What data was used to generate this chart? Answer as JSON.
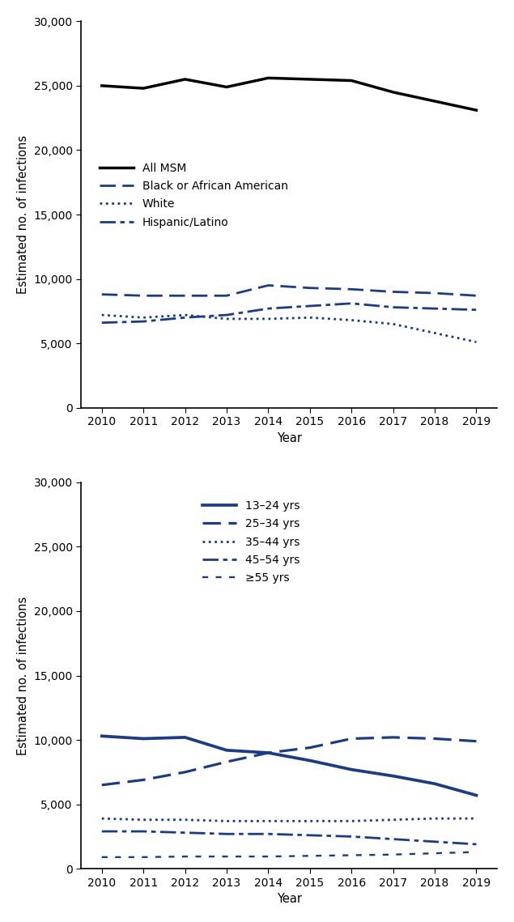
{
  "years": [
    2010,
    2011,
    2012,
    2013,
    2014,
    2015,
    2016,
    2017,
    2018,
    2019
  ],
  "panel1": {
    "all_msm": [
      25000,
      24800,
      25500,
      24900,
      25600,
      25500,
      25400,
      24500,
      23800,
      23100
    ],
    "black": [
      8800,
      8700,
      8700,
      8700,
      9500,
      9300,
      9200,
      9000,
      8900,
      8700
    ],
    "white": [
      7200,
      7000,
      7200,
      6900,
      6900,
      7000,
      6800,
      6500,
      5800,
      5100
    ],
    "hispanic": [
      6600,
      6700,
      7000,
      7200,
      7700,
      7900,
      8100,
      7800,
      7700,
      7600
    ],
    "legend_labels": [
      "All MSM",
      "Black or African American",
      "White",
      "Hispanic/Latino"
    ]
  },
  "panel2": {
    "age_13_24": [
      10300,
      10100,
      10200,
      9200,
      9000,
      8400,
      7700,
      7200,
      6600,
      5700
    ],
    "age_25_34": [
      6500,
      6900,
      7500,
      8300,
      9000,
      9400,
      10100,
      10200,
      10100,
      9900
    ],
    "age_35_44": [
      3900,
      3800,
      3800,
      3700,
      3700,
      3700,
      3700,
      3800,
      3900,
      3900
    ],
    "age_45_54": [
      2900,
      2900,
      2800,
      2700,
      2700,
      2600,
      2500,
      2300,
      2100,
      1900
    ],
    "age_55plus": [
      900,
      900,
      950,
      950,
      950,
      1000,
      1050,
      1100,
      1200,
      1300
    ],
    "legend_labels": [
      "13–24 yrs",
      "25–34 yrs",
      "35–44 yrs",
      "45–54 yrs",
      "≥55 yrs"
    ]
  },
  "ylabel": "Estimated no. of infections",
  "xlabel": "Year",
  "ylim": [
    0,
    30000
  ],
  "yticks": [
    0,
    5000,
    10000,
    15000,
    20000,
    25000,
    30000
  ],
  "color_black": "#000000",
  "color_blue": "#1a3a8a",
  "bg_color": "#ffffff"
}
